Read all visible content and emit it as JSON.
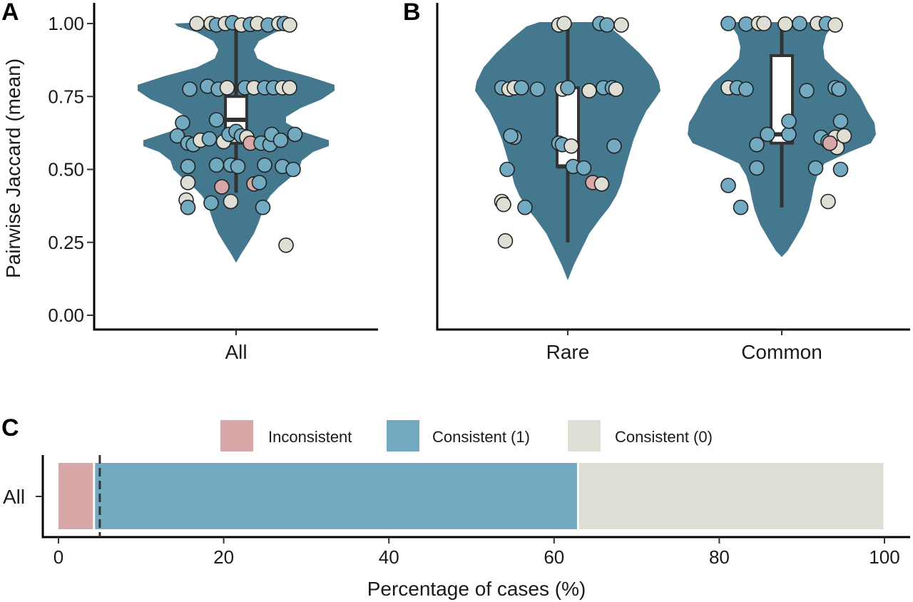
{
  "colors": {
    "violin": "#43788f",
    "inconsistent": "#d8a7a7",
    "consistent_1": "#72aac1",
    "consistent_0": "#dfded4",
    "box": "#333333",
    "point_stroke": "#222222"
  },
  "chart_data": [
    {
      "panel": "A",
      "type": "violin",
      "title": "A",
      "ylabel": "Pairwise Jaccard (mean)",
      "xlabel": "",
      "ylim": [
        0,
        1
      ],
      "yticks": [
        "0.00",
        "0.25",
        "0.50",
        "0.75",
        "1.00"
      ],
      "categories": [
        "All"
      ],
      "grid": false,
      "groups": [
        {
          "name": "All",
          "box": {
            "min": 0.42,
            "q1": 0.59,
            "median": 0.67,
            "q3": 0.75,
            "max": 1.0
          },
          "points": [
            {
              "x": -0.22,
              "y": 1.0,
              "c": 0
            },
            {
              "x": -0.14,
              "y": 1.0,
              "c": 0
            },
            {
              "x": -0.11,
              "y": 0.995,
              "c": 1
            },
            {
              "x": -0.06,
              "y": 1.0,
              "c": 0
            },
            {
              "x": -0.02,
              "y": 1.003,
              "c": 1
            },
            {
              "x": 0.03,
              "y": 0.995,
              "c": 0
            },
            {
              "x": 0.08,
              "y": 0.997,
              "c": 1
            },
            {
              "x": 0.12,
              "y": 1.0,
              "c": 0
            },
            {
              "x": 0.18,
              "y": 0.995,
              "c": 1
            },
            {
              "x": 0.24,
              "y": 1.0,
              "c": 0
            },
            {
              "x": 0.27,
              "y": 1.0,
              "c": 1
            },
            {
              "x": 0.3,
              "y": 0.995,
              "c": 0
            },
            {
              "x": -0.26,
              "y": 0.775,
              "c": 1
            },
            {
              "x": -0.16,
              "y": 0.785,
              "c": 1
            },
            {
              "x": -0.1,
              "y": 0.775,
              "c": 1
            },
            {
              "x": -0.05,
              "y": 0.78,
              "c": 0
            },
            {
              "x": 0.05,
              "y": 0.78,
              "c": 1
            },
            {
              "x": 0.1,
              "y": 0.78,
              "c": 0
            },
            {
              "x": 0.16,
              "y": 0.78,
              "c": 1
            },
            {
              "x": 0.21,
              "y": 0.78,
              "c": 1
            },
            {
              "x": 0.26,
              "y": 0.78,
              "c": 0
            },
            {
              "x": 0.3,
              "y": 0.78,
              "c": 0
            },
            {
              "x": -0.3,
              "y": 0.66,
              "c": 1
            },
            {
              "x": -0.11,
              "y": 0.67,
              "c": 1
            },
            {
              "x": -0.33,
              "y": 0.615,
              "c": 1
            },
            {
              "x": -0.27,
              "y": 0.59,
              "c": 1
            },
            {
              "x": -0.24,
              "y": 0.585,
              "c": 1
            },
            {
              "x": -0.2,
              "y": 0.6,
              "c": 0
            },
            {
              "x": -0.15,
              "y": 0.605,
              "c": 1
            },
            {
              "x": -0.07,
              "y": 0.595,
              "c": 0
            },
            {
              "x": -0.04,
              "y": 0.62,
              "c": 1
            },
            {
              "x": 0.0,
              "y": 0.63,
              "c": 1
            },
            {
              "x": 0.03,
              "y": 0.615,
              "c": 1
            },
            {
              "x": 0.06,
              "y": 0.61,
              "c": 0
            },
            {
              "x": 0.08,
              "y": 0.59,
              "c": 2
            },
            {
              "x": 0.14,
              "y": 0.59,
              "c": 1
            },
            {
              "x": 0.19,
              "y": 0.585,
              "c": 1
            },
            {
              "x": 0.2,
              "y": 0.62,
              "c": 1
            },
            {
              "x": 0.25,
              "y": 0.6,
              "c": 1
            },
            {
              "x": 0.33,
              "y": 0.62,
              "c": 1
            },
            {
              "x": -0.27,
              "y": 0.51,
              "c": 1
            },
            {
              "x": -0.11,
              "y": 0.515,
              "c": 1
            },
            {
              "x": -0.03,
              "y": 0.515,
              "c": 1
            },
            {
              "x": 0.01,
              "y": 0.51,
              "c": 1
            },
            {
              "x": 0.16,
              "y": 0.515,
              "c": 1
            },
            {
              "x": 0.26,
              "y": 0.51,
              "c": 1
            },
            {
              "x": 0.32,
              "y": 0.5,
              "c": 1
            },
            {
              "x": -0.27,
              "y": 0.455,
              "c": 0
            },
            {
              "x": -0.08,
              "y": 0.44,
              "c": 2
            },
            {
              "x": 0.1,
              "y": 0.45,
              "c": 2
            },
            {
              "x": 0.13,
              "y": 0.455,
              "c": 1
            },
            {
              "x": -0.28,
              "y": 0.395,
              "c": 0
            },
            {
              "x": -0.27,
              "y": 0.37,
              "c": 1
            },
            {
              "x": -0.14,
              "y": 0.385,
              "c": 1
            },
            {
              "x": -0.03,
              "y": 0.39,
              "c": 0
            },
            {
              "x": 0.15,
              "y": 0.37,
              "c": 1
            },
            {
              "x": 0.28,
              "y": 0.24,
              "c": 0
            }
          ]
        }
      ]
    },
    {
      "panel": "B",
      "type": "violin",
      "title": "B",
      "ylim": [
        0,
        1
      ],
      "categories": [
        "Rare",
        "Common"
      ],
      "grid": false,
      "groups": [
        {
          "name": "Rare",
          "box": {
            "min": 0.25,
            "q1": 0.51,
            "median": 0.51,
            "q3": 0.78,
            "max": 1.0
          },
          "points": [
            {
              "x": -0.05,
              "y": 0.995,
              "c": 0
            },
            {
              "x": -0.02,
              "y": 1.0,
              "c": 0
            },
            {
              "x": 0.18,
              "y": 1.0,
              "c": 1
            },
            {
              "x": 0.22,
              "y": 0.995,
              "c": 1
            },
            {
              "x": 0.3,
              "y": 0.995,
              "c": 0
            },
            {
              "x": -0.37,
              "y": 0.78,
              "c": 1
            },
            {
              "x": -0.33,
              "y": 0.775,
              "c": 0
            },
            {
              "x": -0.3,
              "y": 0.78,
              "c": 0
            },
            {
              "x": -0.26,
              "y": 0.78,
              "c": 1
            },
            {
              "x": -0.17,
              "y": 0.775,
              "c": 1
            },
            {
              "x": -0.03,
              "y": 0.775,
              "c": 0
            },
            {
              "x": 0.0,
              "y": 0.78,
              "c": 1
            },
            {
              "x": 0.12,
              "y": 0.77,
              "c": 0
            },
            {
              "x": 0.2,
              "y": 0.78,
              "c": 1
            },
            {
              "x": 0.25,
              "y": 0.78,
              "c": 1
            },
            {
              "x": 0.27,
              "y": 0.775,
              "c": 0
            },
            {
              "x": -0.3,
              "y": 0.61,
              "c": 1
            },
            {
              "x": -0.32,
              "y": 0.615,
              "c": 1
            },
            {
              "x": -0.05,
              "y": 0.59,
              "c": 1
            },
            {
              "x": -0.03,
              "y": 0.585,
              "c": 1
            },
            {
              "x": 0.02,
              "y": 0.58,
              "c": 0
            },
            {
              "x": 0.26,
              "y": 0.58,
              "c": 1
            },
            {
              "x": -0.34,
              "y": 0.5,
              "c": 1
            },
            {
              "x": 0.03,
              "y": 0.51,
              "c": 1
            },
            {
              "x": 0.09,
              "y": 0.505,
              "c": 1
            },
            {
              "x": 0.14,
              "y": 0.455,
              "c": 2
            },
            {
              "x": 0.19,
              "y": 0.45,
              "c": 0
            },
            {
              "x": -0.37,
              "y": 0.39,
              "c": 0
            },
            {
              "x": -0.36,
              "y": 0.38,
              "c": 0
            },
            {
              "x": -0.24,
              "y": 0.37,
              "c": 1
            },
            {
              "x": -0.35,
              "y": 0.255,
              "c": 0
            }
          ]
        },
        {
          "name": "Common",
          "box": {
            "min": 0.37,
            "q1": 0.59,
            "median": 0.62,
            "q3": 0.89,
            "max": 1.0
          },
          "points": [
            {
              "x": -0.3,
              "y": 1.0,
              "c": 1
            },
            {
              "x": -0.2,
              "y": 0.998,
              "c": 1
            },
            {
              "x": -0.13,
              "y": 1.0,
              "c": 0
            },
            {
              "x": -0.1,
              "y": 1.0,
              "c": 0
            },
            {
              "x": 0.02,
              "y": 0.998,
              "c": 0
            },
            {
              "x": 0.1,
              "y": 1.0,
              "c": 1
            },
            {
              "x": 0.2,
              "y": 1.0,
              "c": 0
            },
            {
              "x": 0.25,
              "y": 1.0,
              "c": 1
            },
            {
              "x": 0.3,
              "y": 0.995,
              "c": 0
            },
            {
              "x": -0.3,
              "y": 0.78,
              "c": 0
            },
            {
              "x": -0.25,
              "y": 0.78,
              "c": 1
            },
            {
              "x": -0.2,
              "y": 0.775,
              "c": 1
            },
            {
              "x": 0.14,
              "y": 0.77,
              "c": 1
            },
            {
              "x": 0.3,
              "y": 0.78,
              "c": 1
            },
            {
              "x": 0.32,
              "y": 0.775,
              "c": 1
            },
            {
              "x": -0.08,
              "y": 0.62,
              "c": 1
            },
            {
              "x": -0.14,
              "y": 0.585,
              "c": 1
            },
            {
              "x": 0.04,
              "y": 0.62,
              "c": 1
            },
            {
              "x": 0.04,
              "y": 0.665,
              "c": 1
            },
            {
              "x": 0.22,
              "y": 0.61,
              "c": 1
            },
            {
              "x": 0.26,
              "y": 0.595,
              "c": 1
            },
            {
              "x": 0.29,
              "y": 0.59,
              "c": 1
            },
            {
              "x": 0.3,
              "y": 0.61,
              "c": 0
            },
            {
              "x": 0.31,
              "y": 0.575,
              "c": 0
            },
            {
              "x": 0.33,
              "y": 0.665,
              "c": 1
            },
            {
              "x": 0.35,
              "y": 0.615,
              "c": 0
            },
            {
              "x": 0.27,
              "y": 0.59,
              "c": 2
            },
            {
              "x": -0.14,
              "y": 0.505,
              "c": 1
            },
            {
              "x": 0.19,
              "y": 0.505,
              "c": 1
            },
            {
              "x": 0.33,
              "y": 0.5,
              "c": 1
            },
            {
              "x": -0.3,
              "y": 0.445,
              "c": 1
            },
            {
              "x": -0.23,
              "y": 0.37,
              "c": 1
            },
            {
              "x": 0.26,
              "y": 0.39,
              "c": 0
            }
          ]
        }
      ]
    },
    {
      "panel": "C",
      "type": "bar",
      "orientation": "horizontal",
      "stacked": true,
      "title": "C",
      "xlabel": "Percentage of cases (%)",
      "xlim": [
        0,
        100
      ],
      "xticks": [
        "0",
        "20",
        "40",
        "60",
        "80",
        "100"
      ],
      "categories": [
        "All"
      ],
      "legend": {
        "position": "top",
        "entries": [
          "Inconsistent",
          "Consistent (1)",
          "Consistent (0)"
        ]
      },
      "series": [
        {
          "name": "Inconsistent",
          "values": [
            4.3
          ]
        },
        {
          "name": "Consistent (1)",
          "values": [
            58.6
          ]
        },
        {
          "name": "Consistent (0)",
          "values": [
            37.1
          ]
        }
      ],
      "reference_line": {
        "x": 5,
        "style": "dashed"
      }
    }
  ]
}
